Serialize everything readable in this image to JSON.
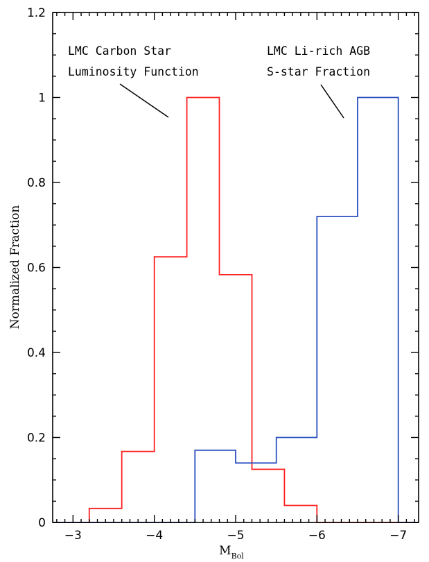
{
  "chart_data": {
    "type": "histogram",
    "title": "",
    "xlabel": "M",
    "xlabel_sub": "Bol",
    "ylabel": "Normalized Fraction",
    "xlim": [
      -2.75,
      -7.25
    ],
    "ylim": [
      0,
      1.2
    ],
    "x_ticks": [
      -3,
      -4,
      -5,
      -6,
      -7
    ],
    "x_tick_labels": [
      "−3",
      "−4",
      "−5",
      "−6",
      "−7"
    ],
    "y_ticks": [
      0,
      0.2,
      0.4,
      0.6,
      0.8,
      1,
      1.2
    ],
    "y_tick_labels": [
      "0",
      "0.2",
      "0.4",
      "0.6",
      "0.8",
      "1",
      "1.2"
    ],
    "grid": false,
    "series": [
      {
        "color": "#ff2020",
        "bin_edges": [
          -2.75,
          -3.2,
          -3.6,
          -4.0,
          -4.4,
          -4.8,
          -5.2,
          -5.6,
          -6.0,
          -7.25
        ],
        "values": [
          0,
          0.033,
          0.167,
          0.625,
          1.0,
          0.583,
          0.125,
          0.04,
          0
        ]
      },
      {
        "color": "#2a4fbf",
        "bin_edges": [
          -2.75,
          -4.5,
          -5.0,
          -5.5,
          -6.0,
          -6.5,
          -7.0,
          -7.25
        ],
        "values": [
          0,
          0.17,
          0.14,
          0.2,
          0.72,
          1.0,
          0
        ]
      }
    ],
    "annotations": [
      {
        "lines": [
          "LMC Carbon Star",
          "Luminosity Function"
        ]
      },
      {
        "lines": [
          "LMC Li-rich AGB",
          "S-star Fraction"
        ]
      }
    ]
  }
}
